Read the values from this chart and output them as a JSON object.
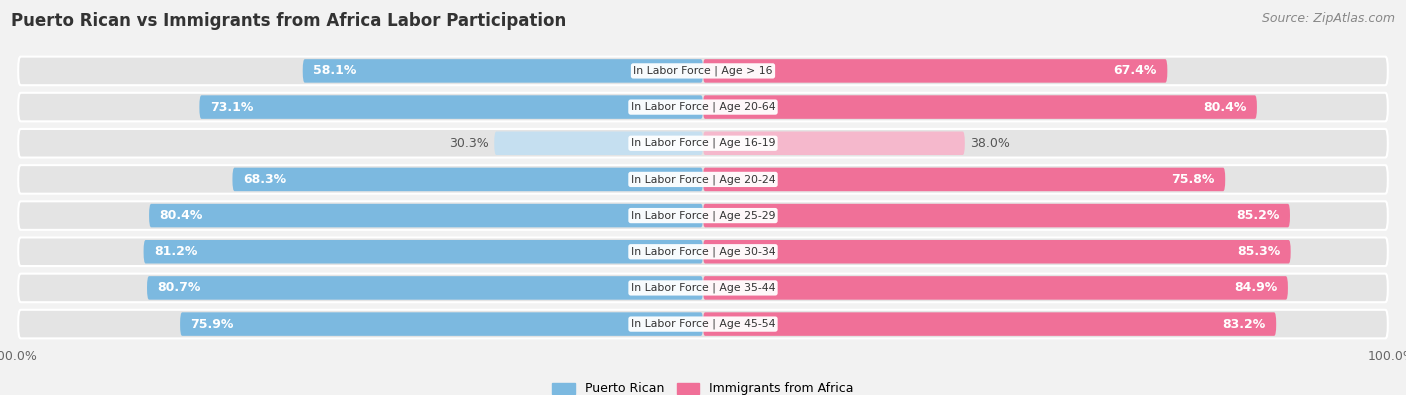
{
  "title": "Puerto Rican vs Immigrants from Africa Labor Participation",
  "source": "Source: ZipAtlas.com",
  "categories": [
    "In Labor Force | Age > 16",
    "In Labor Force | Age 20-64",
    "In Labor Force | Age 16-19",
    "In Labor Force | Age 20-24",
    "In Labor Force | Age 25-29",
    "In Labor Force | Age 30-34",
    "In Labor Force | Age 35-44",
    "In Labor Force | Age 45-54"
  ],
  "puerto_rican": [
    58.1,
    73.1,
    30.3,
    68.3,
    80.4,
    81.2,
    80.7,
    75.9
  ],
  "africa": [
    67.4,
    80.4,
    38.0,
    75.8,
    85.2,
    85.3,
    84.9,
    83.2
  ],
  "puerto_rican_color": "#7cb9e0",
  "africa_color": "#f07098",
  "puerto_rican_light_color": "#c5dff0",
  "africa_light_color": "#f5b8cc",
  "bg_color": "#f2f2f2",
  "row_bg_color": "#e4e4e4",
  "title_fontsize": 12,
  "source_fontsize": 9,
  "label_fontsize": 9,
  "legend_fontsize": 9,
  "max_value": 100.0,
  "light_rows": [
    2
  ],
  "legend_labels": [
    "Puerto Rican",
    "Immigrants from Africa"
  ]
}
